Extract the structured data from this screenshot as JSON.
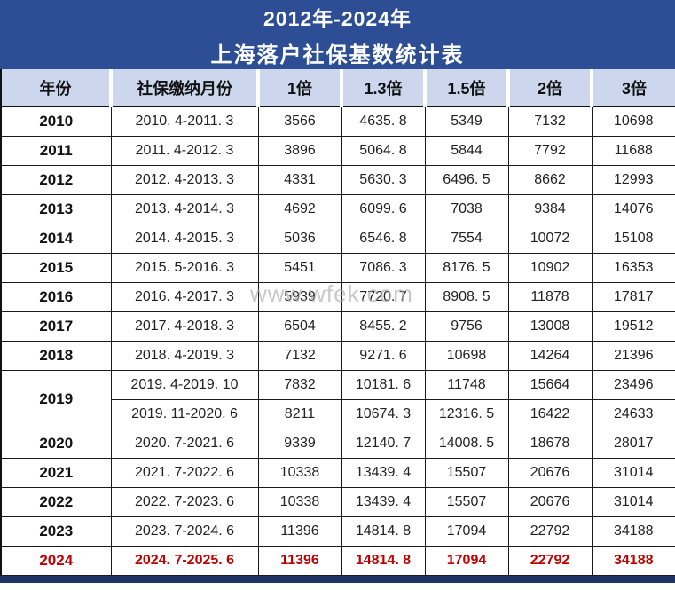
{
  "title": {
    "line1": "2012年-2024年",
    "line2": "上海落户社保基数统计表"
  },
  "watermark": "www.wfek.com",
  "colors": {
    "banner_bg": "#2d4e95",
    "header_bg": "#ccd7ee",
    "highlight_red": "#c00000",
    "bottom_bar": "#1e3268",
    "border": "#1a1a1a"
  },
  "table": {
    "headers": [
      "年份",
      "社保缴纳月份",
      "1倍",
      "1.3倍",
      "1.5倍",
      "2倍",
      "3倍"
    ],
    "rows": [
      {
        "year": "2010",
        "months": "2010. 4-2011. 3",
        "values": [
          "3566",
          "4635. 8",
          "5349",
          "7132",
          "10698"
        ]
      },
      {
        "year": "2011",
        "months": "2011. 4-2012. 3",
        "values": [
          "3896",
          "5064. 8",
          "5844",
          "7792",
          "11688"
        ]
      },
      {
        "year": "2012",
        "months": "2012. 4-2013. 3",
        "values": [
          "4331",
          "5630. 3",
          "6496. 5",
          "8662",
          "12993"
        ]
      },
      {
        "year": "2013",
        "months": "2013. 4-2014. 3",
        "values": [
          "4692",
          "6099. 6",
          "7038",
          "9384",
          "14076"
        ]
      },
      {
        "year": "2014",
        "months": "2014. 4-2015. 3",
        "values": [
          "5036",
          "6546. 8",
          "7554",
          "10072",
          "15108"
        ]
      },
      {
        "year": "2015",
        "months": "2015. 5-2016. 3",
        "values": [
          "5451",
          "7086. 3",
          "8176. 5",
          "10902",
          "16353"
        ]
      },
      {
        "year": "2016",
        "months": "2016. 4-2017. 3",
        "values": [
          "5939",
          "7720. 7",
          "8908. 5",
          "11878",
          "17817"
        ]
      },
      {
        "year": "2017",
        "months": "2017. 4-2018. 3",
        "values": [
          "6504",
          "8455. 2",
          "9756",
          "13008",
          "19512"
        ]
      },
      {
        "year": "2018",
        "months": "2018. 4-2019. 3",
        "values": [
          "7132",
          "9271. 6",
          "10698",
          "14264",
          "21396"
        ]
      },
      {
        "year": "2019",
        "months": "2019. 4-2019. 10",
        "values": [
          "7832",
          "10181. 6",
          "11748",
          "15664",
          "23496"
        ]
      },
      {
        "months": "2019. 11-2020. 6",
        "values": [
          "8211",
          "10674. 3",
          "12316. 5",
          "16422",
          "24633"
        ]
      },
      {
        "year": "2020",
        "months": "2020. 7-2021. 6",
        "values": [
          "9339",
          "12140. 7",
          "14008. 5",
          "18678",
          "28017"
        ]
      },
      {
        "year": "2021",
        "months": "2021. 7-2022. 6",
        "values": [
          "10338",
          "13439. 4",
          "15507",
          "20676",
          "31014"
        ]
      },
      {
        "year": "2022",
        "months": "2022. 7-2023. 6",
        "values": [
          "10338",
          "13439. 4",
          "15507",
          "20676",
          "31014"
        ]
      },
      {
        "year": "2023",
        "months": "2023. 7-2024. 6",
        "values": [
          "11396",
          "14814. 8",
          "17094",
          "22792",
          "34188"
        ]
      },
      {
        "year": "2024",
        "months": "2024. 7-2025. 6",
        "values": [
          "11396",
          "14814. 8",
          "17094",
          "22792",
          "34188"
        ]
      }
    ]
  }
}
